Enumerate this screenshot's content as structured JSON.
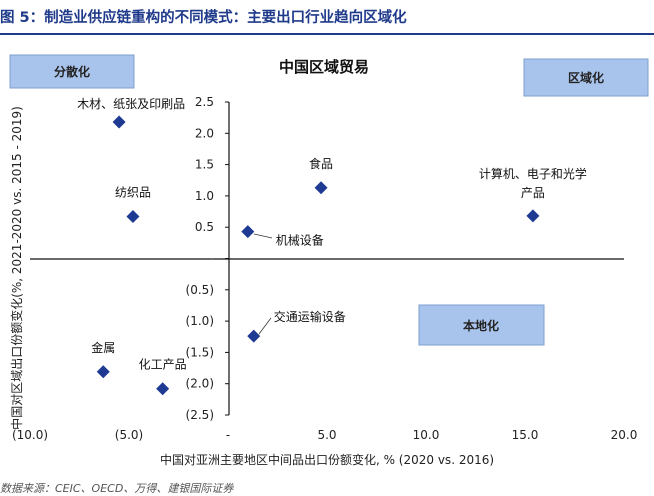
{
  "figure": {
    "title": "图 5：制造业供应链重构的不同模式：主要出口行业趋向区域化",
    "source": "数据来源：CEIC、OECD、万得、建银国际证券"
  },
  "colors": {
    "marker": "#1f3a93",
    "box": "#a9c4ec",
    "box_border": "#7f9fd0",
    "title": "#1f3a8a"
  },
  "chart_data": {
    "type": "scatter",
    "title": "中国区域贸易",
    "xlabel": "中国对亚洲主要地区中间品出口份额变化, % (2020 vs. 2016)",
    "ylabel": "中国对区域出口份额变化(%, 2021-2020 vs. 2015 - 2019)",
    "xlim": [
      -10,
      20
    ],
    "ylim": [
      -2.5,
      2.5
    ],
    "x_ticks": [
      {
        "v": -10,
        "label": "(10.0)"
      },
      {
        "v": -5,
        "label": "(5.0)"
      },
      {
        "v": 0,
        "label": "-"
      },
      {
        "v": 5,
        "label": "5.0"
      },
      {
        "v": 10,
        "label": "10.0"
      },
      {
        "v": 15,
        "label": "15.0"
      },
      {
        "v": 20,
        "label": "20.0"
      }
    ],
    "y_ticks": [
      {
        "v": 2.5,
        "label": "2.5"
      },
      {
        "v": 2.0,
        "label": "2.0"
      },
      {
        "v": 1.5,
        "label": "1.5"
      },
      {
        "v": 1.0,
        "label": "1.0"
      },
      {
        "v": 0.5,
        "label": "0.5"
      },
      {
        "v": 0,
        "label": "-"
      },
      {
        "v": -0.5,
        "label": "(0.5)"
      },
      {
        "v": -1.0,
        "label": "(1.0)"
      },
      {
        "v": -1.5,
        "label": "(1.5)"
      },
      {
        "v": -2.0,
        "label": "(2.0)"
      },
      {
        "v": -2.5,
        "label": "(2.5)"
      }
    ],
    "points": [
      {
        "name": "木材、纸张及印刷品",
        "x": -5.5,
        "y": 2.18
      },
      {
        "name": "纺织品",
        "x": -4.8,
        "y": 0.67
      },
      {
        "name": "食品",
        "x": 4.7,
        "y": 1.13
      },
      {
        "name": "计算机、电子和光学产品",
        "x": 15.4,
        "y": 0.68
      },
      {
        "name": "机械设备",
        "x": 1.0,
        "y": 0.43
      },
      {
        "name": "交通运输设备",
        "x": 1.3,
        "y": -1.24
      },
      {
        "name": "金属",
        "x": -6.3,
        "y": -1.81
      },
      {
        "name": "化工产品",
        "x": -3.3,
        "y": -2.08
      }
    ],
    "quadrant_labels": [
      "分散化",
      "区域化",
      "本地化"
    ]
  }
}
